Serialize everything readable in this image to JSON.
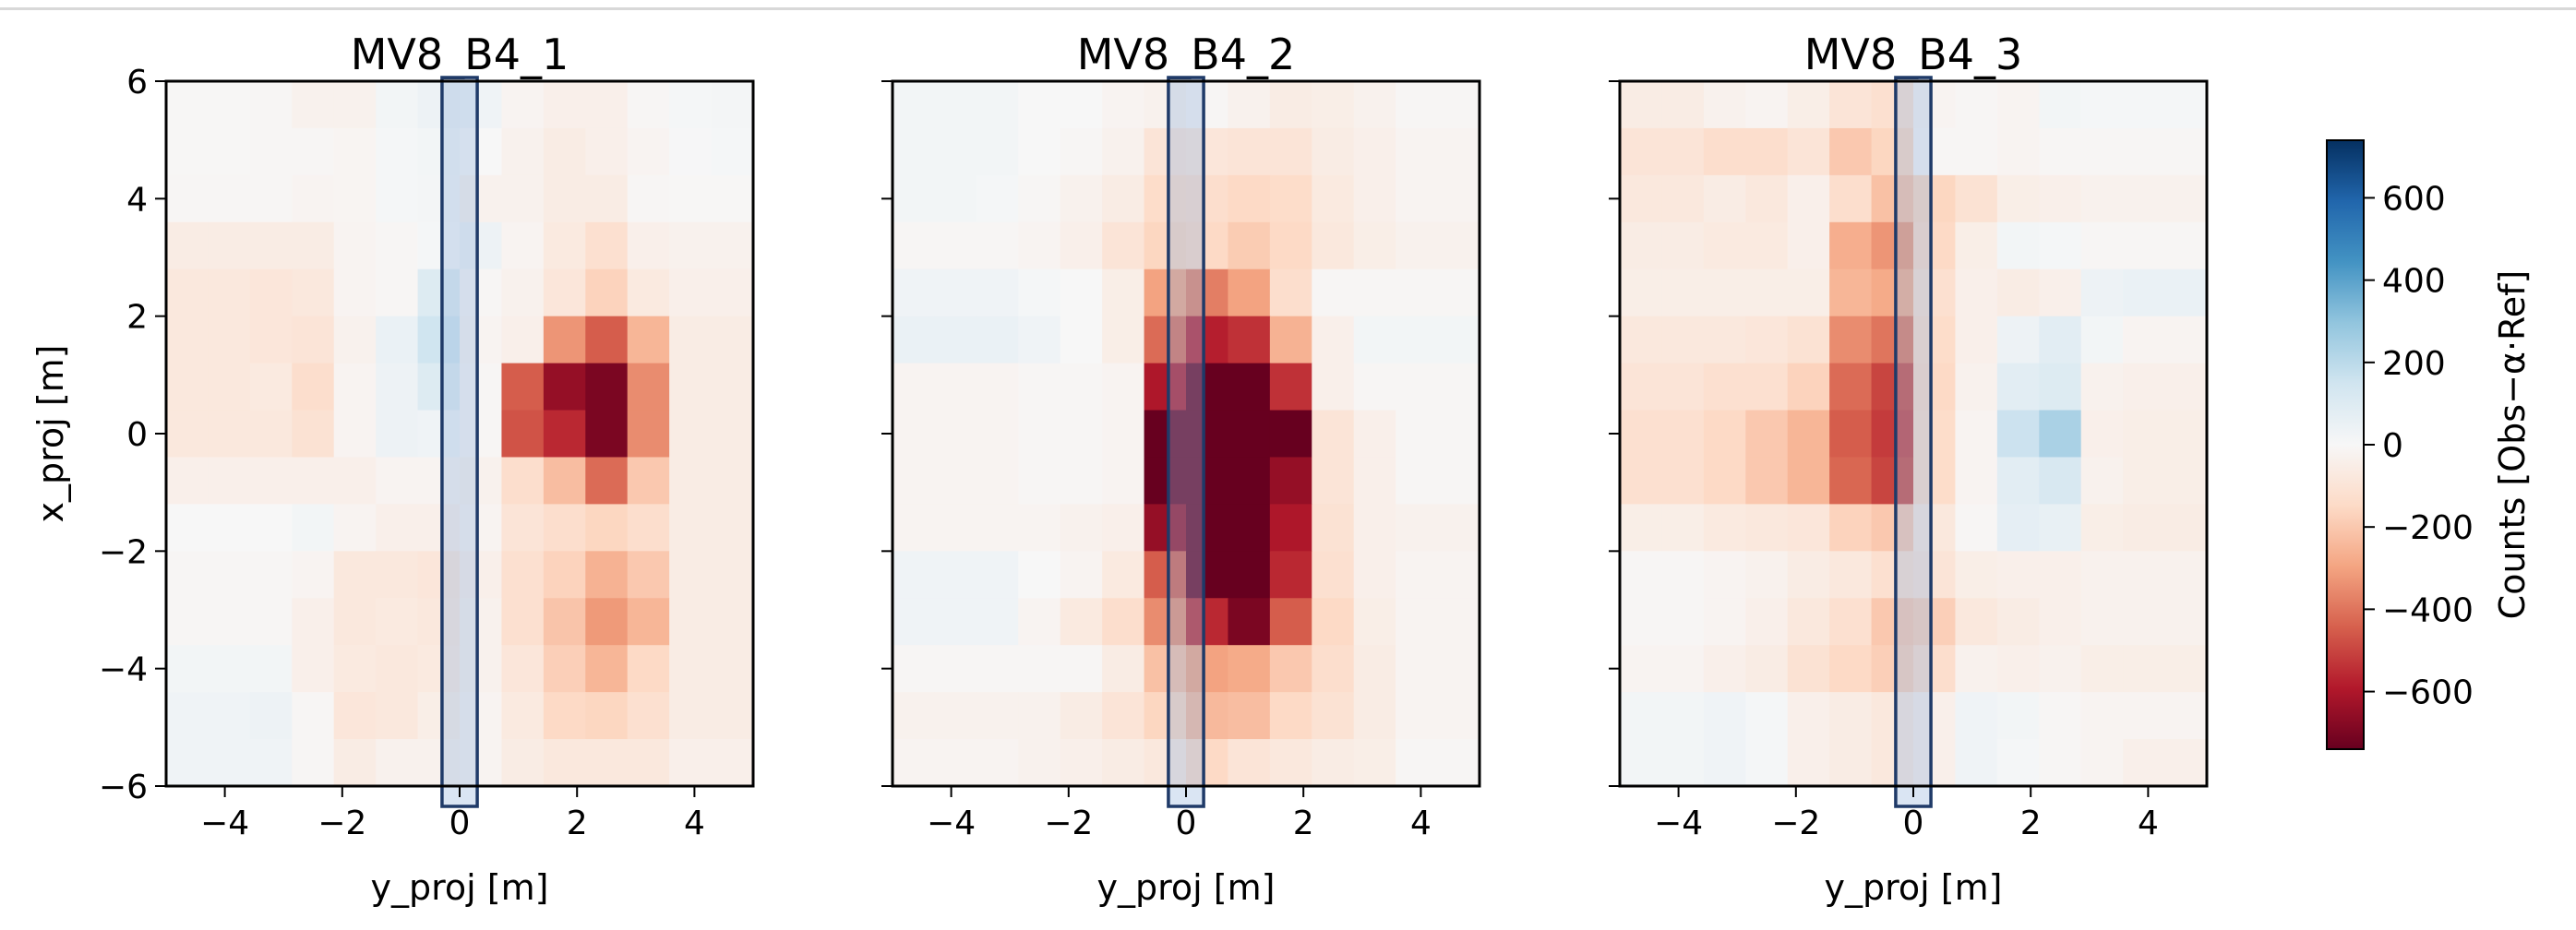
{
  "chart_data": {
    "type": "heatmap",
    "colormap": "RdBu (red = negative, blue = positive)",
    "x_extent": [
      -5,
      5
    ],
    "y_extent": [
      -6,
      6
    ],
    "xlabel": "y_proj [m]",
    "ylabel": "x_proj [m]",
    "x_ticks": [
      "−4",
      "−2",
      "0",
      "2",
      "4"
    ],
    "y_ticks": [
      "6",
      "4",
      "2",
      "0",
      "−2",
      "−4",
      "−6"
    ],
    "colorbar": {
      "label": "Counts  [Obs−α·Ref]",
      "range": [
        -740,
        740
      ],
      "ticks": [
        "600",
        "400",
        "200",
        "0",
        "−200",
        "−400",
        "−600"
      ]
    },
    "highlight_box_y_range": [
      -0.3,
      0.3
    ],
    "highlight_color": "#1f3a68",
    "panels": [
      {
        "title": "MV8_B4_1",
        "grid": [
          [
            -5,
            -5,
            -10,
            -30,
            -30,
            20,
            40,
            30,
            -20,
            -40,
            -40,
            -10,
            10,
            15
          ],
          [
            -5,
            -5,
            -10,
            -10,
            -15,
            10,
            20,
            0,
            -30,
            -60,
            -40,
            -20,
            5,
            10
          ],
          [
            -10,
            -10,
            -10,
            -20,
            -15,
            10,
            15,
            -30,
            -30,
            -60,
            -60,
            -10,
            -5,
            -5
          ],
          [
            -60,
            -60,
            -60,
            -60,
            -20,
            -10,
            10,
            40,
            -20,
            -70,
            -120,
            -40,
            -30,
            -30
          ],
          [
            -80,
            -80,
            -90,
            -80,
            -20,
            -10,
            100,
            -10,
            -30,
            -90,
            -170,
            -70,
            -40,
            -40
          ],
          [
            -80,
            -80,
            -90,
            -100,
            -30,
            50,
            150,
            -20,
            -40,
            -330,
            -450,
            -250,
            -60,
            -60
          ],
          [
            -80,
            -80,
            -70,
            -130,
            -20,
            40,
            100,
            -10,
            -450,
            -650,
            -700,
            -350,
            -60,
            -60
          ],
          [
            -80,
            -80,
            -80,
            -110,
            -20,
            40,
            30,
            -10,
            -470,
            -560,
            -700,
            -350,
            -60,
            -60
          ],
          [
            -40,
            -40,
            -40,
            -40,
            -40,
            -20,
            -20,
            -30,
            -130,
            -230,
            -420,
            -200,
            -60,
            -60
          ],
          [
            0,
            0,
            0,
            20,
            -20,
            -40,
            -40,
            -20,
            -100,
            -130,
            -160,
            -130,
            -60,
            -60
          ],
          [
            -10,
            -10,
            -10,
            -20,
            -80,
            -80,
            -90,
            -40,
            -120,
            -170,
            -260,
            -200,
            -60,
            -60
          ],
          [
            -10,
            -10,
            -10,
            -40,
            -80,
            -70,
            -80,
            -30,
            -120,
            -210,
            -320,
            -250,
            -60,
            -60
          ],
          [
            20,
            20,
            20,
            -40,
            -70,
            -80,
            -70,
            -30,
            -90,
            -180,
            -250,
            -150,
            -60,
            -60
          ],
          [
            30,
            30,
            40,
            -10,
            -90,
            -80,
            -50,
            -20,
            -70,
            -150,
            -160,
            -120,
            -60,
            -60
          ],
          [
            30,
            30,
            30,
            -10,
            -60,
            -30,
            -30,
            -20,
            -60,
            -80,
            -80,
            -80,
            -40,
            -40
          ]
        ]
      },
      {
        "title": "MV8_B4_2",
        "grid": [
          [
            20,
            20,
            20,
            0,
            0,
            -20,
            -30,
            -10,
            -30,
            -60,
            -50,
            -30,
            -10,
            -10
          ],
          [
            20,
            20,
            20,
            0,
            -10,
            -30,
            -100,
            -90,
            -100,
            -100,
            -60,
            -40,
            -20,
            -20
          ],
          [
            20,
            20,
            10,
            -10,
            -30,
            -60,
            -140,
            -130,
            -150,
            -140,
            -70,
            -40,
            -20,
            -20
          ],
          [
            -10,
            -10,
            -10,
            -20,
            -40,
            -100,
            -160,
            -150,
            -190,
            -150,
            -80,
            -50,
            -30,
            -30
          ],
          [
            30,
            30,
            30,
            10,
            0,
            -50,
            -300,
            -380,
            -300,
            -130,
            -10,
            -10,
            -10,
            -10
          ],
          [
            50,
            50,
            50,
            30,
            0,
            -50,
            -420,
            -580,
            -540,
            -260,
            -40,
            20,
            20,
            20
          ],
          [
            -20,
            -20,
            -20,
            -10,
            -10,
            -20,
            -600,
            -800,
            -800,
            -540,
            -40,
            -10,
            -10,
            -10
          ],
          [
            -20,
            -20,
            -20,
            -10,
            -10,
            -20,
            -750,
            -800,
            -800,
            -750,
            -100,
            -40,
            -10,
            -10
          ],
          [
            -20,
            -20,
            -20,
            -10,
            -10,
            -20,
            -750,
            -800,
            -800,
            -650,
            -100,
            -40,
            -10,
            -10
          ],
          [
            -20,
            -20,
            -20,
            -20,
            -30,
            -40,
            -650,
            -800,
            -800,
            -600,
            -110,
            -40,
            -30,
            -30
          ],
          [
            30,
            30,
            30,
            0,
            -20,
            -70,
            -450,
            -800,
            -800,
            -560,
            -120,
            -40,
            -20,
            -20
          ],
          [
            30,
            30,
            30,
            -20,
            -70,
            -130,
            -350,
            -560,
            -700,
            -450,
            -150,
            -50,
            -20,
            -20
          ],
          [
            -10,
            -10,
            -10,
            -10,
            -10,
            -60,
            -220,
            -300,
            -280,
            -200,
            -130,
            -60,
            -20,
            -20
          ],
          [
            -30,
            -30,
            -30,
            -30,
            -60,
            -100,
            -160,
            -240,
            -230,
            -150,
            -110,
            -60,
            -20,
            -20
          ],
          [
            -20,
            -20,
            -20,
            -30,
            -40,
            -60,
            -80,
            -150,
            -100,
            -80,
            -60,
            -50,
            -10,
            -10
          ]
        ]
      },
      {
        "title": "MV8_B4_3",
        "grid": [
          [
            -60,
            -60,
            -30,
            -20,
            -50,
            -100,
            -120,
            -20,
            -10,
            -20,
            20,
            10,
            10,
            10
          ],
          [
            -100,
            -100,
            -130,
            -130,
            -100,
            -200,
            -160,
            -10,
            -10,
            -20,
            -10,
            -10,
            -10,
            -10
          ],
          [
            -80,
            -80,
            -60,
            -80,
            -40,
            -130,
            -220,
            -160,
            -110,
            -50,
            -40,
            -30,
            -30,
            -30
          ],
          [
            -60,
            -60,
            -70,
            -70,
            -40,
            -270,
            -330,
            -150,
            -50,
            20,
            10,
            -10,
            -10,
            -10
          ],
          [
            -50,
            -50,
            -50,
            -50,
            -50,
            -250,
            -280,
            -120,
            -40,
            -60,
            -40,
            40,
            50,
            50
          ],
          [
            -80,
            -80,
            -80,
            -90,
            -110,
            -350,
            -400,
            -140,
            -40,
            40,
            80,
            20,
            -20,
            -20
          ],
          [
            -100,
            -100,
            -120,
            -120,
            -170,
            -420,
            -500,
            -150,
            -30,
            80,
            100,
            -30,
            -40,
            -40
          ],
          [
            -120,
            -120,
            -150,
            -200,
            -250,
            -450,
            -520,
            -140,
            -20,
            160,
            240,
            -40,
            -50,
            -50
          ],
          [
            -120,
            -120,
            -150,
            -200,
            -250,
            -430,
            -500,
            -140,
            -20,
            80,
            120,
            -30,
            -50,
            -50
          ],
          [
            -50,
            -50,
            -70,
            -80,
            -90,
            -170,
            -200,
            -80,
            -10,
            70,
            60,
            -50,
            -60,
            -60
          ],
          [
            -10,
            -10,
            -20,
            -30,
            -60,
            -80,
            -120,
            -100,
            -50,
            -40,
            -40,
            -30,
            -30,
            -30
          ],
          [
            -10,
            -10,
            -20,
            -40,
            -80,
            -120,
            -200,
            -180,
            -80,
            -60,
            -40,
            -30,
            -30,
            -30
          ],
          [
            -20,
            -20,
            -40,
            -60,
            -110,
            -150,
            -180,
            -130,
            -30,
            -40,
            -30,
            -50,
            -50,
            -50
          ],
          [
            20,
            20,
            30,
            10,
            -40,
            -60,
            -80,
            -40,
            30,
            20,
            -10,
            -20,
            -20,
            -20
          ],
          [
            20,
            20,
            30,
            10,
            -40,
            -60,
            -80,
            -40,
            30,
            10,
            -10,
            -20,
            -40,
            -40
          ]
        ]
      }
    ]
  }
}
